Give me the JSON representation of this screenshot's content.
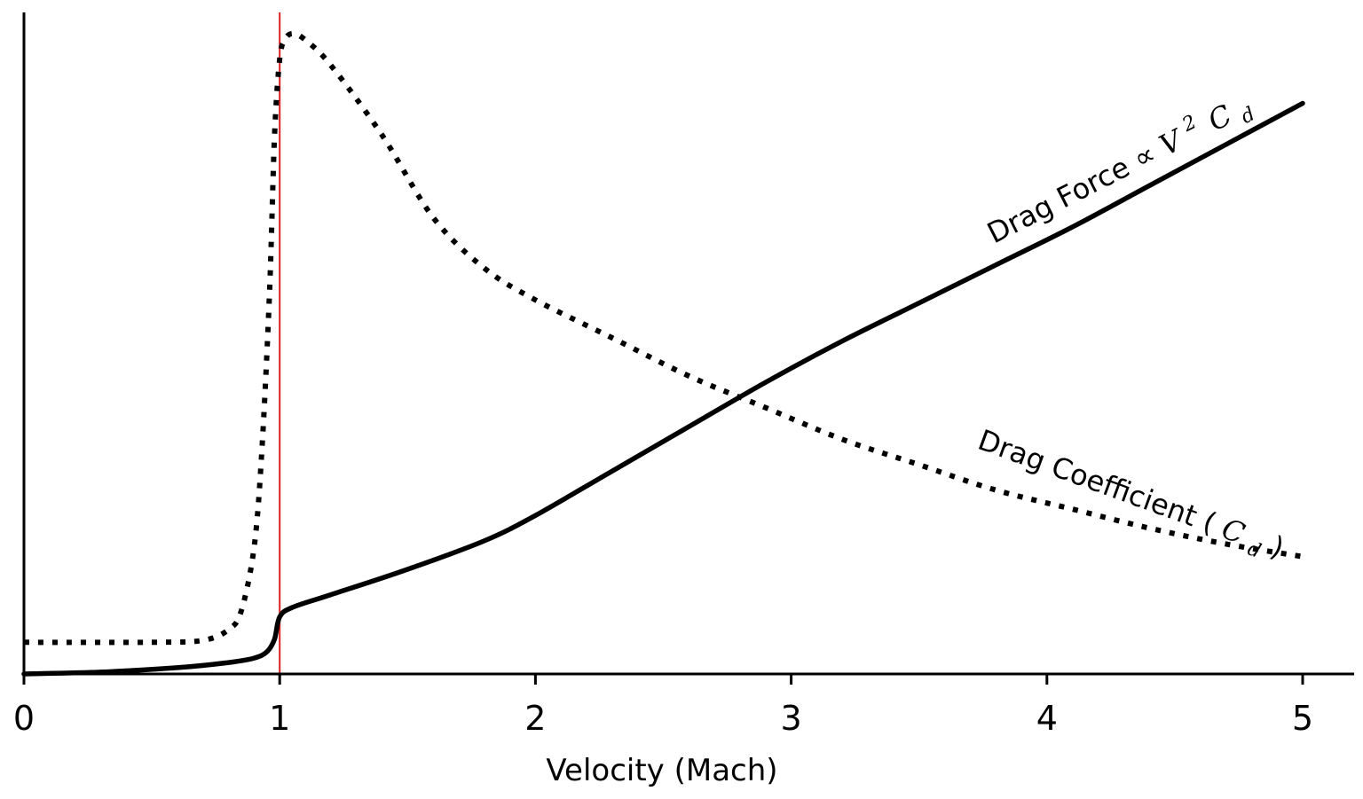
{
  "chart_data": {
    "type": "line",
    "xlabel": "Velocity (Mach)",
    "ylabel": "",
    "xlim": [
      0,
      5.2
    ],
    "ylim": [
      0,
      1.05
    ],
    "x_ticks": [
      "0",
      "1",
      "2",
      "3",
      "4",
      "5"
    ],
    "x_tick_values": [
      0,
      1,
      2,
      3,
      4,
      5
    ],
    "reference_line": {
      "x": 1,
      "color": "#e02020"
    },
    "series": [
      {
        "name": "Drag Coefficient (C_d)",
        "style": "dotted",
        "label_parts": {
          "text": "Drag Coefficient (",
          "math": "C",
          "sub": "d",
          "tail": ")"
        },
        "x": [
          0,
          0.5,
          0.7,
          0.8,
          0.85,
          0.9,
          0.93,
          0.96,
          0.98,
          1.0,
          1.02,
          1.05,
          1.1,
          1.2,
          1.4,
          1.6,
          1.8,
          2.0,
          2.3,
          2.6,
          2.9,
          3.2,
          3.5,
          3.8,
          4.1,
          4.4,
          4.7,
          5.0
        ],
        "y": [
          0.05,
          0.05,
          0.053,
          0.07,
          0.1,
          0.2,
          0.35,
          0.6,
          0.85,
          0.97,
          1.0,
          1.01,
          1.0,
          0.96,
          0.85,
          0.72,
          0.64,
          0.59,
          0.53,
          0.47,
          0.42,
          0.37,
          0.33,
          0.29,
          0.26,
          0.23,
          0.205,
          0.185
        ]
      },
      {
        "name": "Drag Force ∝ V^2 C_d",
        "style": "solid",
        "label_parts": {
          "text": "Drag Force ∝ ",
          "math": "V",
          "sup": "2",
          "math2": "C",
          "sub": "d"
        },
        "x": [
          0,
          0.3,
          0.6,
          0.8,
          0.9,
          0.95,
          0.98,
          1.0,
          1.05,
          1.2,
          1.5,
          1.8,
          2.0,
          2.3,
          2.6,
          2.9,
          3.2,
          3.5,
          3.8,
          4.1,
          4.4,
          4.7,
          5.0
        ],
        "y": [
          0,
          0.003,
          0.01,
          0.018,
          0.025,
          0.035,
          0.055,
          0.09,
          0.105,
          0.125,
          0.165,
          0.21,
          0.25,
          0.32,
          0.39,
          0.46,
          0.525,
          0.585,
          0.645,
          0.705,
          0.77,
          0.835,
          0.9
        ]
      }
    ]
  }
}
